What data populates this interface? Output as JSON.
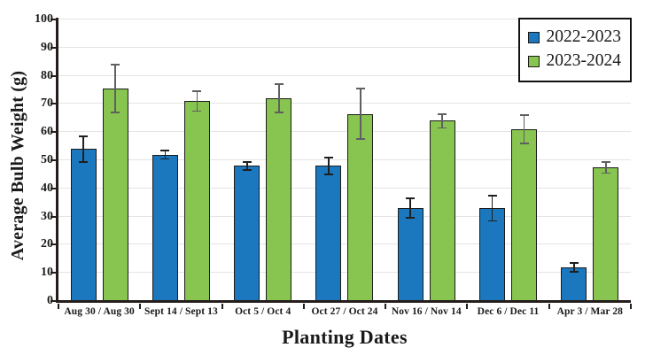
{
  "chart_data": {
    "type": "bar",
    "title": "",
    "xlabel": "Planting Dates",
    "ylabel": "Average Bulb Weight (g)",
    "ylim": [
      0,
      100
    ],
    "ytick_step": 10,
    "ytick_labels": [
      "0",
      "10",
      "20",
      "30",
      "40",
      "50",
      "60",
      "70",
      "80",
      "90",
      "100"
    ],
    "grid": true,
    "legend_position": "top-right",
    "categories": [
      "Aug 30 / Aug 30",
      "Sept 14 / Sept 13",
      "Oct 5 / Oct 4",
      "Oct 27 / Oct 24",
      "Nov 16 / Nov 14",
      "Dec 6 / Dec 11",
      "Apr 3 / Mar 28"
    ],
    "series": [
      {
        "name": "2022-2023",
        "color": "#1b78be",
        "error_color": "#1f1f1f",
        "values": [
          54,
          52,
          48,
          48,
          33,
          33,
          12
        ],
        "errors": [
          4.5,
          1.5,
          1.5,
          3,
          3.5,
          4.5,
          1.5
        ]
      },
      {
        "name": "2023-2024",
        "color": "#87c450",
        "error_color": "#5f5f5f",
        "values": [
          75.5,
          71,
          72,
          66.5,
          64,
          61,
          47.5
        ],
        "errors": [
          8.5,
          3.5,
          5,
          9,
          2.5,
          5,
          2
        ]
      }
    ]
  },
  "colors": {
    "axis": "#241d1b",
    "gridline": "#e4e4e4",
    "background": "#ffffff",
    "bar_border": "#1c1c1c",
    "legend_border": "#111111"
  }
}
